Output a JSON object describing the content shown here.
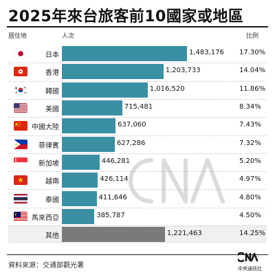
{
  "title": "2025年來台旅客前10國家或地區",
  "headers": {
    "origin": "居住地",
    "visitors": "人次",
    "share": "比例"
  },
  "colors": {
    "bar": "#3a8fa3",
    "other_bar": "#7a7a7a",
    "text": "#1a1a1a",
    "rule": "#1a1a1a"
  },
  "chart_data": {
    "type": "bar",
    "orientation": "horizontal",
    "title": "2025年來台旅客前10國家或地區",
    "xlabel": "人次",
    "ylabel": "居住地",
    "xlim": [
      0,
      1483176
    ],
    "grid": false,
    "categories": [
      "日本",
      "香港",
      "韓國",
      "美國",
      "中國大陸",
      "菲律賓",
      "新加坡",
      "越南",
      "泰國",
      "馬來西亞",
      "其他"
    ],
    "values": [
      1483176,
      1203733,
      1016520,
      715481,
      637060,
      627286,
      446281,
      426114,
      411646,
      385787,
      1221463
    ],
    "value_labels": [
      "1,483,176",
      "1,203,733",
      "1,016,520",
      "715,481",
      "637,060",
      "627,286",
      "446,281",
      "426,114",
      "411,646",
      "385,787",
      "1,221,463"
    ],
    "share_labels": [
      "17.30%",
      "14.04%",
      "11.86%",
      "8.34%",
      "7.43%",
      "7.32%",
      "5.20%",
      "4.97%",
      "4.80%",
      "4.50%",
      "14.25%"
    ],
    "flags": [
      "japan-flag-icon",
      "hong-kong-flag-icon",
      "south-korea-flag-icon",
      "usa-flag-icon",
      "china-flag-icon",
      "philippines-flag-icon",
      "singapore-flag-icon",
      "vietnam-flag-icon",
      "thailand-flag-icon",
      "malaysia-flag-icon",
      null
    ]
  },
  "source": "資料來源：交通部觀光署",
  "brand": {
    "name": "中央通訊社",
    "logo_icon": "cna-logo-icon",
    "watermark_icon": "cna-watermark-icon"
  }
}
